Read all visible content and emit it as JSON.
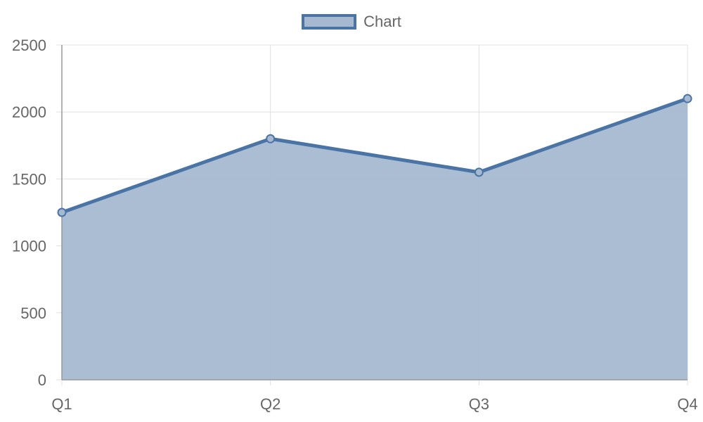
{
  "chart_data": {
    "type": "area",
    "categories": [
      "Q1",
      "Q2",
      "Q3",
      "Q4"
    ],
    "series": [
      {
        "name": "Chart",
        "values": [
          1250,
          1800,
          1550,
          2100
        ]
      }
    ],
    "ylim": [
      0,
      2500
    ],
    "yticks": [
      0,
      500,
      1000,
      1500,
      2000,
      2500
    ],
    "grid": true,
    "legend": "top-center",
    "colors": {
      "line": "#4a74a5",
      "fill": "#a7b9d1",
      "grid": "#e0e0e0",
      "axis": "#9a9a9a",
      "text": "#666666"
    }
  }
}
